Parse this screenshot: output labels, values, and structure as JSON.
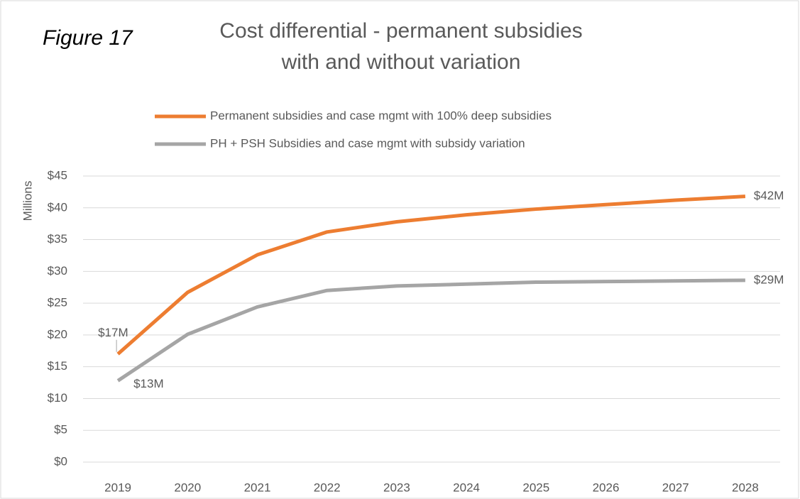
{
  "chart_data": {
    "type": "line",
    "title": [
      "Cost differential - permanent subsidies",
      "with and without variation"
    ],
    "annotation": "Figure 17",
    "y_label": "Millions",
    "categories": [
      "2019",
      "2020",
      "2021",
      "2022",
      "2023",
      "2024",
      "2025",
      "2026",
      "2027",
      "2028"
    ],
    "series": [
      {
        "name": "Permanent subsidies and case mgmt with 100% deep subsidies",
        "color": "#ed7d31",
        "values": [
          17,
          26.7,
          32.6,
          36.2,
          37.8,
          38.9,
          39.8,
          40.5,
          41.2,
          41.8
        ],
        "value_labels": [
          "$17M",
          null,
          null,
          null,
          null,
          null,
          null,
          null,
          null,
          "$42M"
        ]
      },
      {
        "name": "PH + PSH Subsidies and case mgmt  with subsidy variation",
        "color": "#a5a5a5",
        "values": [
          12.8,
          20.1,
          24.4,
          27.0,
          27.7,
          28.0,
          28.3,
          28.4,
          28.5,
          28.6
        ],
        "value_labels": [
          "$13M",
          null,
          null,
          null,
          null,
          null,
          null,
          null,
          null,
          "$29M"
        ]
      }
    ],
    "ylim": [
      0,
      45
    ],
    "yticks": [
      {
        "value": 0,
        "label": "$0"
      },
      {
        "value": 5,
        "label": "$5"
      },
      {
        "value": 10,
        "label": "$10"
      },
      {
        "value": 15,
        "label": "$15"
      },
      {
        "value": 20,
        "label": "$20"
      },
      {
        "value": 25,
        "label": "$25"
      },
      {
        "value": 30,
        "label": "$30"
      },
      {
        "value": 35,
        "label": "$35"
      },
      {
        "value": 40,
        "label": "$40"
      },
      {
        "value": 45,
        "label": "$45"
      }
    ],
    "grid": true,
    "legend": "top"
  }
}
